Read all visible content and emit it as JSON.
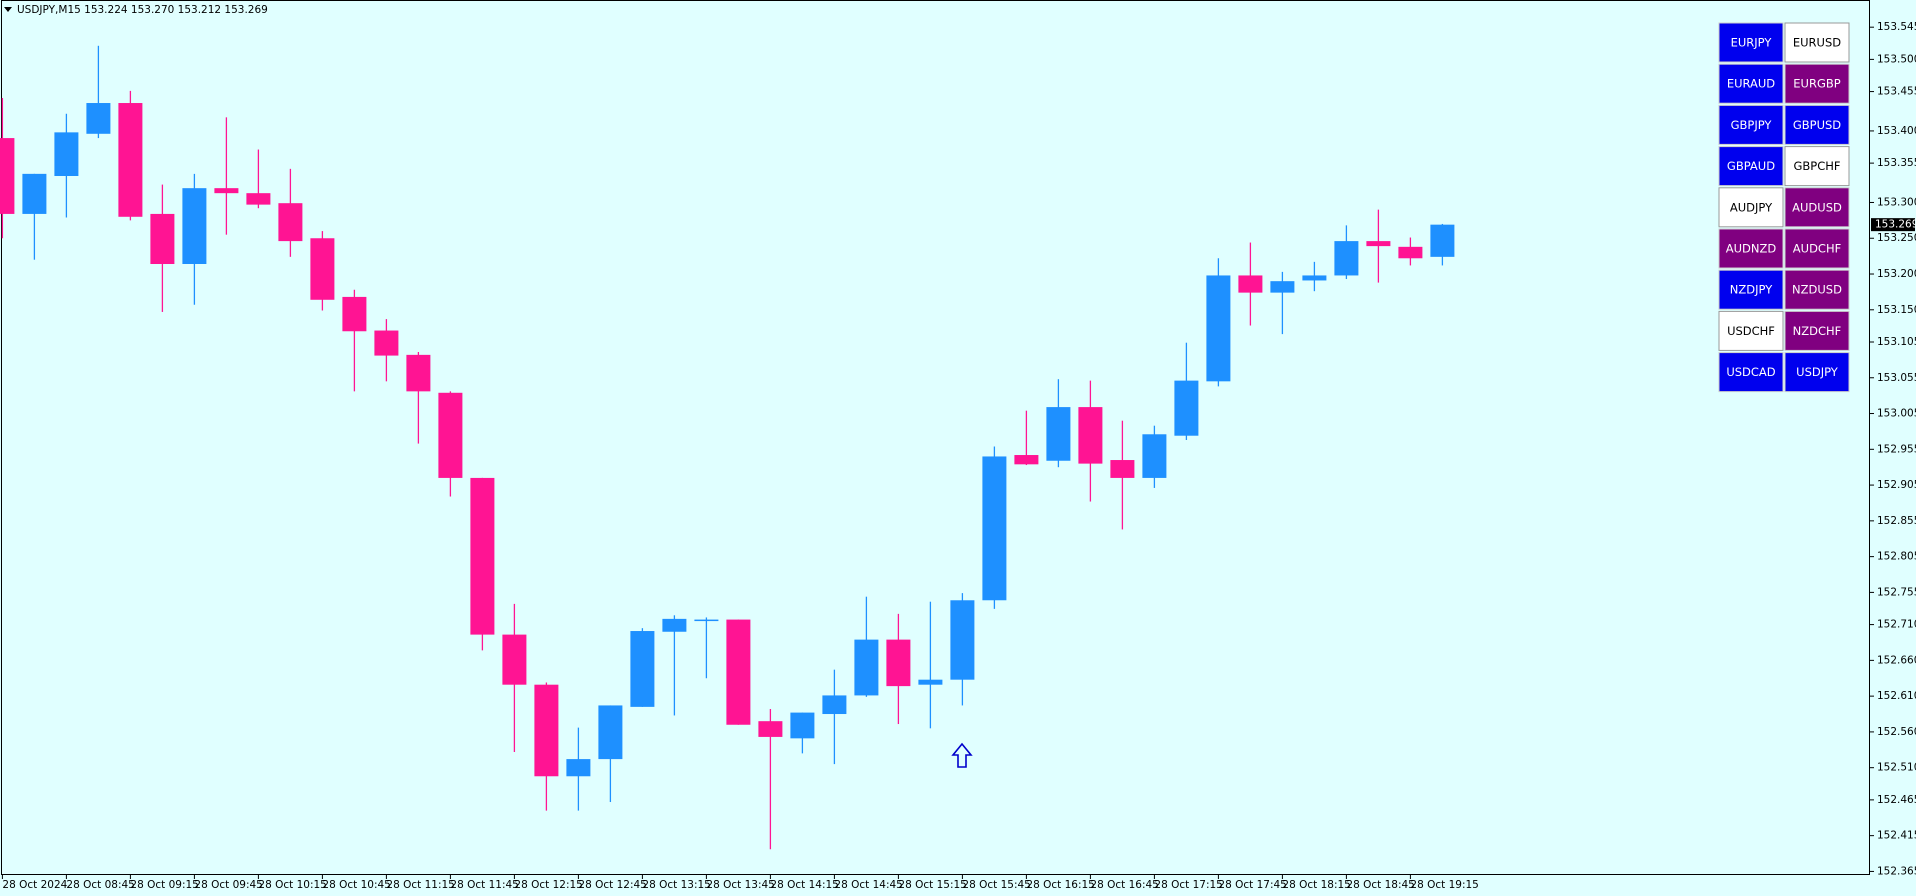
{
  "chart_data": {
    "type": "candlestick",
    "title": "USDJPY,M15  153.224 153.270 153.212 153.269",
    "categories": [
      "28 Oct 2024",
      null,
      "28 Oct 08:45",
      null,
      "28 Oct 09:15",
      null,
      "28 Oct 09:45",
      null,
      "28 Oct 10:15",
      null,
      "28 Oct 10:45",
      null,
      "28 Oct 11:15",
      null,
      "28 Oct 11:45",
      null,
      "28 Oct 12:15",
      null,
      "28 Oct 12:45",
      null,
      "28 Oct 13:15",
      null,
      "28 Oct 13:45",
      null,
      "28 Oct 14:15",
      null,
      "28 Oct 14:45",
      null,
      "28 Oct 15:15",
      null,
      "28 Oct 15:45",
      null,
      "28 Oct 16:15",
      null,
      "28 Oct 16:45",
      null,
      "28 Oct 17:15",
      null,
      "28 Oct 17:45",
      null,
      "28 Oct 18:15",
      null,
      "28 Oct 18:45",
      null,
      "28 Oct 19:15",
      null
    ],
    "open": [
      153.39,
      153.284,
      153.337,
      153.396,
      153.439,
      153.284,
      153.214,
      153.32,
      153.313,
      153.299,
      153.25,
      153.168,
      153.121,
      153.087,
      153.034,
      152.915,
      152.696,
      152.626,
      152.498,
      152.522,
      152.595,
      152.7,
      152.717,
      152.717,
      152.575,
      152.551,
      152.585,
      152.611,
      152.689,
      152.626,
      152.633,
      152.744,
      152.947,
      152.939,
      153.014,
      152.94,
      152.915,
      152.974,
      153.05,
      153.198,
      153.174,
      153.191,
      153.198,
      153.246,
      153.238,
      153.224
    ],
    "high": [
      153.446,
      153.34,
      153.424,
      153.519,
      153.456,
      153.325,
      153.34,
      153.419,
      153.374,
      153.347,
      153.26,
      153.178,
      153.137,
      153.091,
      153.036,
      152.915,
      152.739,
      152.629,
      152.566,
      152.597,
      152.705,
      152.723,
      152.72,
      152.717,
      152.592,
      152.587,
      152.647,
      152.749,
      152.725,
      152.742,
      152.754,
      152.959,
      153.009,
      153.053,
      153.051,
      152.995,
      152.988,
      153.104,
      153.222,
      153.244,
      153.203,
      153.217,
      153.268,
      153.29,
      153.251,
      153.27
    ],
    "low": [
      153.25,
      153.22,
      153.279,
      153.39,
      153.275,
      153.147,
      153.157,
      153.255,
      153.292,
      153.224,
      153.149,
      153.036,
      153.05,
      152.963,
      152.889,
      152.674,
      152.532,
      152.45,
      152.45,
      152.462,
      152.595,
      152.583,
      152.635,
      152.57,
      152.396,
      152.53,
      152.515,
      152.609,
      152.571,
      152.565,
      152.597,
      152.732,
      152.933,
      152.93,
      152.882,
      152.843,
      152.901,
      152.968,
      153.043,
      153.128,
      153.116,
      153.176,
      153.193,
      153.188,
      153.212,
      153.212
    ],
    "close": [
      153.284,
      153.34,
      153.398,
      153.439,
      153.28,
      153.214,
      153.32,
      153.313,
      153.297,
      153.246,
      153.164,
      153.12,
      153.086,
      153.036,
      152.915,
      152.696,
      152.626,
      152.498,
      152.522,
      152.597,
      152.701,
      152.718,
      152.717,
      152.57,
      152.553,
      152.587,
      152.611,
      152.689,
      152.624,
      152.633,
      152.744,
      152.945,
      152.934,
      153.014,
      152.935,
      152.915,
      152.976,
      153.051,
      153.198,
      153.174,
      153.19,
      153.198,
      153.246,
      153.239,
      153.222,
      153.269
    ],
    "up_color": "#1e90ff",
    "down_color": "#ff1493",
    "ylim": [
      152.36,
      153.583
    ],
    "yticks": [
      153.545,
      {
        "value": 153.5,
        "label": "153.500"
      },
      153.455,
      {
        "value": 153.4,
        "label": "153.400"
      },
      153.355,
      {
        "value": 153.3,
        "label": "153.300"
      },
      {
        "value": 153.25,
        "label": "153.250"
      },
      {
        "value": 153.2,
        "label": "153.200"
      },
      {
        "value": 153.15,
        "label": "153.150"
      },
      153.105,
      153.055,
      153.005,
      152.955,
      152.905,
      152.855,
      152.805,
      152.755,
      {
        "value": 152.71,
        "label": "152.710"
      },
      {
        "value": 152.66,
        "label": "152.660"
      },
      {
        "value": 152.61,
        "label": "152.610"
      },
      {
        "value": 152.56,
        "label": "152.560"
      },
      {
        "value": 152.51,
        "label": "152.510"
      },
      152.465,
      152.415,
      152.365
    ],
    "grid": false
  },
  "buttons": [
    {
      "label": "EURJPY",
      "color": "#0000ee"
    },
    {
      "label": "EURUSD",
      "color": "#ffffff"
    },
    {
      "label": "EURAUD",
      "color": "#0000ee"
    },
    {
      "label": "EURGBP",
      "color": "#800080"
    },
    {
      "label": "GBPJPY",
      "color": "#0000ee"
    },
    {
      "label": "GBPUSD",
      "color": "#0000ee"
    },
    {
      "label": "GBPAUD",
      "color": "#0000ee"
    },
    {
      "label": "GBPCHF",
      "color": "#ffffff"
    },
    {
      "label": "AUDJPY",
      "color": "#ffffff"
    },
    {
      "label": "AUDUSD",
      "color": "#800080"
    },
    {
      "label": "AUDNZD",
      "color": "#800080"
    },
    {
      "label": "AUDCHF",
      "color": "#800080"
    },
    {
      "label": "NZDJPY",
      "color": "#0000ee"
    },
    {
      "label": "NZDUSD",
      "color": "#800080"
    },
    {
      "label": "USDCHF",
      "color": "#ffffff"
    },
    {
      "label": "NZDCHF",
      "color": "#800080"
    },
    {
      "label": "USDCAD",
      "color": "#0000ee"
    },
    {
      "label": "USDJPY",
      "color": "#0000ee"
    }
  ]
}
